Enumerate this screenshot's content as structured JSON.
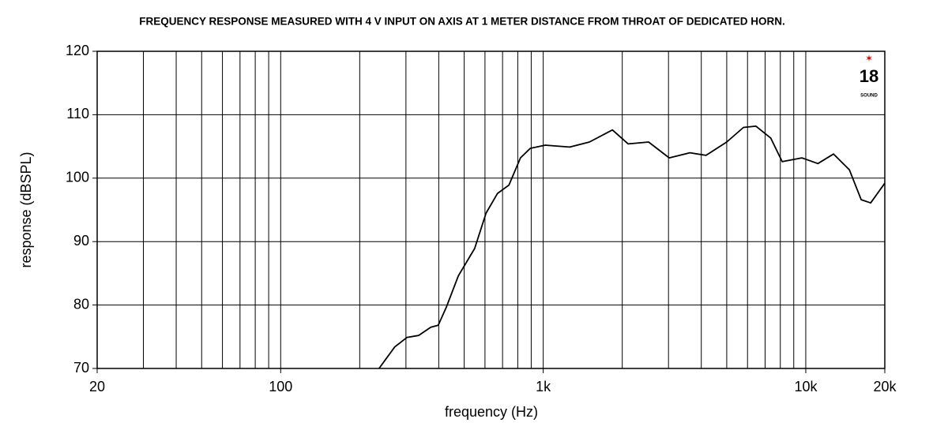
{
  "chart_data": {
    "type": "line",
    "title": "FREQUENCY RESPONSE MEASURED WITH 4 V INPUT ON AXIS AT 1 METER DISTANCE FROM THROAT OF DEDICATED HORN.",
    "x_label": "frequency (Hz)",
    "y_label": "response (dBSPL)",
    "logo": {
      "number": "18",
      "brand": "SOUND"
    },
    "x_scale": "log",
    "grid": true,
    "xlim": [
      20,
      20000
    ],
    "xticks": [
      20,
      100,
      {
        "value": 1000,
        "label": "1k"
      },
      {
        "value": 10000,
        "label": "10k"
      },
      {
        "value": 20000,
        "label": "20k"
      }
    ],
    "x_minor_ticks": [
      30,
      40,
      50,
      60,
      70,
      80,
      90,
      200,
      300,
      400,
      500,
      600,
      700,
      800,
      900,
      2000,
      3000,
      4000,
      5000,
      6000,
      7000,
      8000,
      9000
    ],
    "ylim": [
      70,
      120
    ],
    "yticks": [
      70,
      80,
      90,
      100,
      110,
      120
    ],
    "x": [
      237,
      272,
      303,
      335,
      373,
      398,
      427,
      475,
      548,
      606,
      670,
      740,
      819,
      893,
      1018,
      1262,
      1500,
      1834,
      2107,
      2520,
      3020,
      3620,
      4170,
      5000,
      5790,
      6460,
      7360,
      8130,
      9660,
      11120,
      12760,
      14660,
      16260,
      17670,
      20000
    ],
    "series": [
      {
        "color": "#000000",
        "values": [
          70,
          73.4,
          74.9,
          75.2,
          76.5,
          76.8,
          79.6,
          84.6,
          88.9,
          94.5,
          97.6,
          98.9,
          103.2,
          104.7,
          105.2,
          104.9,
          105.7,
          107.6,
          105.4,
          105.7,
          103.2,
          104.0,
          103.6,
          105.7,
          108.0,
          108.2,
          106.3,
          102.6,
          103.2,
          102.3,
          103.8,
          101.3,
          96.6,
          96.1,
          99.2
        ]
      }
    ]
  }
}
